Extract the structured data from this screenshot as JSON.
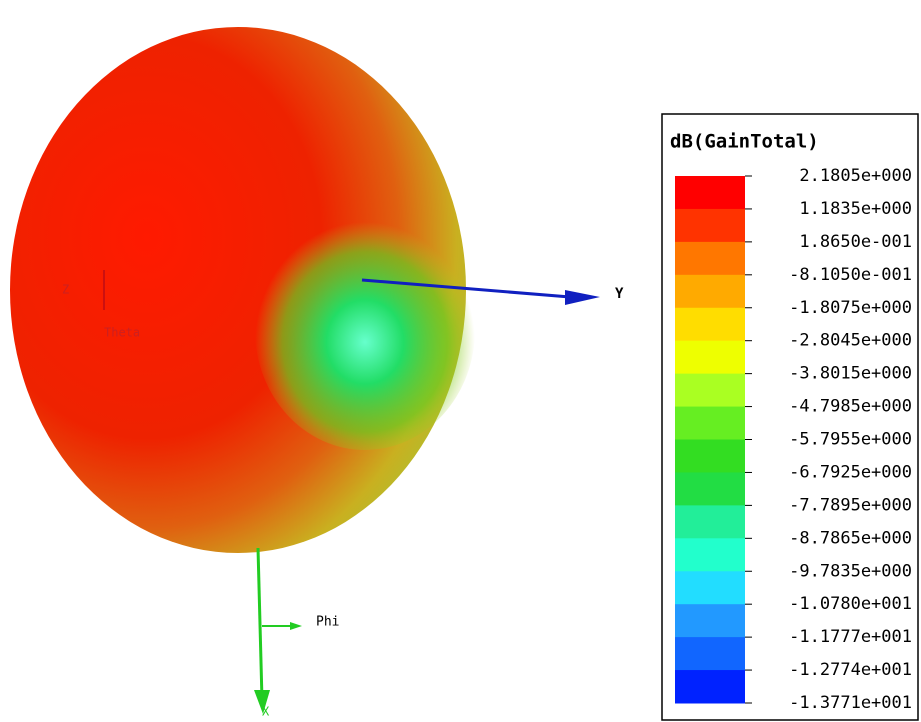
{
  "chart_data": {
    "type": "pattern3d",
    "colorbar_title": "dB(GainTotal)",
    "colorbar_ticks": [
      {
        "value": 2.1805,
        "label": "2.1805e+000"
      },
      {
        "value": 1.1835,
        "label": "1.1835e+000"
      },
      {
        "value": 0.1865,
        "label": "1.8650e-001"
      },
      {
        "value": -0.8105,
        "label": "-8.1050e-001"
      },
      {
        "value": -1.8075,
        "label": "-1.8075e+000"
      },
      {
        "value": -2.8045,
        "label": "-2.8045e+000"
      },
      {
        "value": -3.8015,
        "label": "-3.8015e+000"
      },
      {
        "value": -4.7985,
        "label": "-4.7985e+000"
      },
      {
        "value": -5.7955,
        "label": "-5.7955e+000"
      },
      {
        "value": -6.7925,
        "label": "-6.7925e+000"
      },
      {
        "value": -7.7895,
        "label": "-7.7895e+000"
      },
      {
        "value": -8.7865,
        "label": "-8.7865e+000"
      },
      {
        "value": -9.7835,
        "label": "-9.7835e+000"
      },
      {
        "value": -10.78,
        "label": "-1.0780e+001"
      },
      {
        "value": -11.777,
        "label": "-1.1777e+001"
      },
      {
        "value": -12.774,
        "label": "-1.2774e+001"
      },
      {
        "value": -13.771,
        "label": "-1.3771e+001"
      }
    ],
    "colorbar_colors": [
      "#ff0000",
      "#ff3300",
      "#ff7700",
      "#ffaa00",
      "#ffdd00",
      "#eeff00",
      "#aaff22",
      "#66ee22",
      "#33dd22",
      "#22dd44",
      "#22ee99",
      "#22ffcc",
      "#22ddff",
      "#2299ff",
      "#1166ff",
      "#0022ff"
    ],
    "axis_labels": {
      "y": "Y",
      "x": "X",
      "z": "Z",
      "theta": "Theta",
      "phi": "Phi"
    }
  }
}
